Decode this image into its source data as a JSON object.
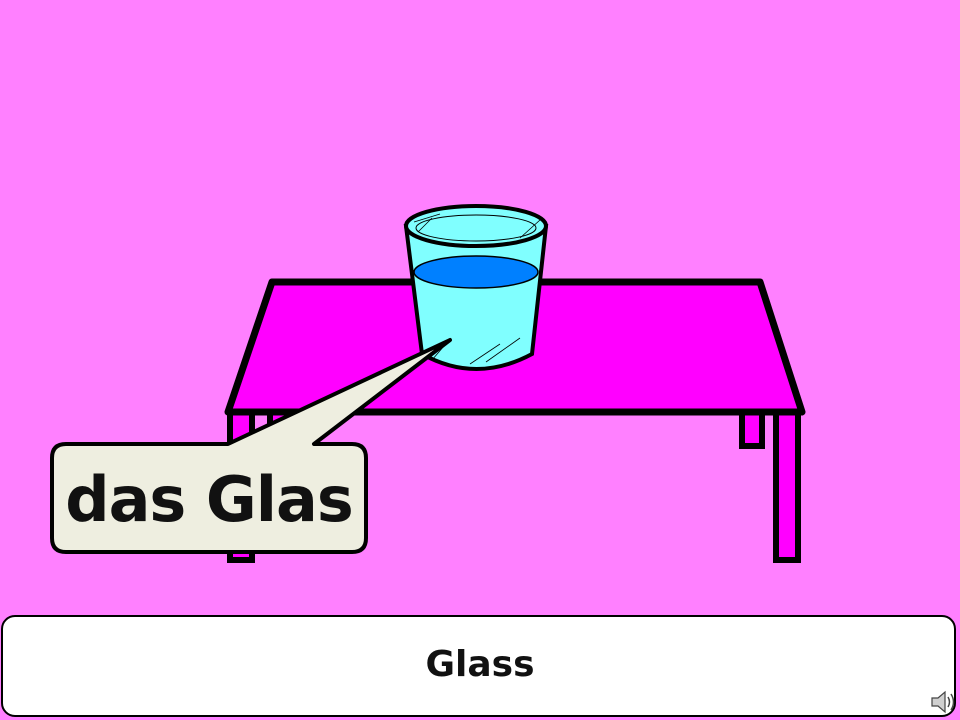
{
  "slide": {
    "german_word": "das Glas",
    "english_word": "Glass"
  },
  "colors": {
    "background": "#ff80ff",
    "table_top": "#ff00ff",
    "glass": "#80ffff",
    "water": "#0080ff",
    "callout": "#eeeee0"
  },
  "icons": {
    "audio": "speaker-icon"
  }
}
